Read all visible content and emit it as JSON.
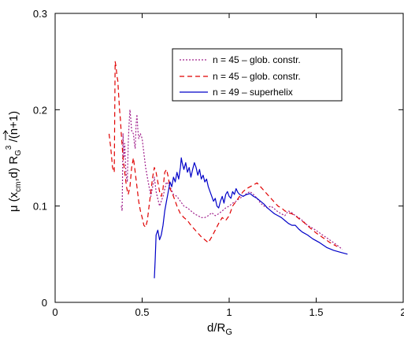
{
  "chart_data": {
    "type": "line",
    "xlabel_main": "d/R",
    "xlabel_sub": "G",
    "ylabel_mu": "μ",
    "ylabel_open": " (",
    "ylabel_x": "x",
    "ylabel_cm": "cm",
    "ylabel_mid": ",d) R",
    "ylabel_g": "G",
    "ylabel_exp": "3",
    "ylabel_tail": " /(n+1)",
    "xlim": [
      0,
      2
    ],
    "ylim": [
      0,
      0.3
    ],
    "x_ticks": [
      {
        "value": 0,
        "label": "0"
      },
      {
        "value": 0.5,
        "label": "0.5"
      },
      {
        "value": 1,
        "label": "1"
      },
      {
        "value": 1.5,
        "label": "1.5"
      },
      {
        "value": 2,
        "label": "2"
      }
    ],
    "y_ticks": [
      {
        "value": 0,
        "label": "0"
      },
      {
        "value": 0.1,
        "label": "0.1"
      },
      {
        "value": 0.2,
        "label": "0.2"
      },
      {
        "value": 0.3,
        "label": "0.3"
      }
    ],
    "grid": false,
    "legend_position": "top-right",
    "series": [
      {
        "name": "n = 45 – glob. constr.",
        "color": "#a0208c",
        "dash": "2,2",
        "points": [
          [
            0.38,
            0.1
          ],
          [
            0.385,
            0.095
          ],
          [
            0.39,
            0.175
          ],
          [
            0.395,
            0.15
          ],
          [
            0.4,
            0.165
          ],
          [
            0.405,
            0.14
          ],
          [
            0.41,
            0.13
          ],
          [
            0.415,
            0.125
          ],
          [
            0.42,
            0.165
          ],
          [
            0.425,
            0.185
          ],
          [
            0.43,
            0.2
          ],
          [
            0.435,
            0.19
          ],
          [
            0.44,
            0.178
          ],
          [
            0.45,
            0.175
          ],
          [
            0.455,
            0.165
          ],
          [
            0.46,
            0.16
          ],
          [
            0.465,
            0.185
          ],
          [
            0.47,
            0.195
          ],
          [
            0.475,
            0.18
          ],
          [
            0.48,
            0.17
          ],
          [
            0.49,
            0.175
          ],
          [
            0.5,
            0.17
          ],
          [
            0.51,
            0.155
          ],
          [
            0.52,
            0.14
          ],
          [
            0.53,
            0.13
          ],
          [
            0.54,
            0.12
          ],
          [
            0.55,
            0.11
          ],
          [
            0.56,
            0.12
          ],
          [
            0.57,
            0.13
          ],
          [
            0.58,
            0.115
          ],
          [
            0.6,
            0.1
          ],
          [
            0.62,
            0.11
          ],
          [
            0.64,
            0.125
          ],
          [
            0.66,
            0.12
          ],
          [
            0.68,
            0.112
          ],
          [
            0.7,
            0.11
          ],
          [
            0.72,
            0.105
          ],
          [
            0.74,
            0.1
          ],
          [
            0.76,
            0.098
          ],
          [
            0.78,
            0.095
          ],
          [
            0.8,
            0.092
          ],
          [
            0.82,
            0.09
          ],
          [
            0.84,
            0.088
          ],
          [
            0.86,
            0.088
          ],
          [
            0.88,
            0.09
          ],
          [
            0.9,
            0.093
          ],
          [
            0.92,
            0.09
          ],
          [
            0.94,
            0.092
          ],
          [
            0.96,
            0.095
          ],
          [
            0.98,
            0.098
          ],
          [
            1.0,
            0.1
          ],
          [
            1.02,
            0.103
          ],
          [
            1.04,
            0.105
          ],
          [
            1.06,
            0.108
          ],
          [
            1.08,
            0.11
          ],
          [
            1.1,
            0.113
          ],
          [
            1.12,
            0.115
          ],
          [
            1.14,
            0.112
          ],
          [
            1.16,
            0.108
          ],
          [
            1.18,
            0.103
          ],
          [
            1.2,
            0.1
          ],
          [
            1.22,
            0.098
          ],
          [
            1.24,
            0.1
          ],
          [
            1.26,
            0.097
          ],
          [
            1.28,
            0.094
          ],
          [
            1.3,
            0.092
          ],
          [
            1.32,
            0.09
          ],
          [
            1.34,
            0.095
          ],
          [
            1.36,
            0.093
          ],
          [
            1.38,
            0.09
          ],
          [
            1.4,
            0.088
          ],
          [
            1.42,
            0.085
          ],
          [
            1.45,
            0.08
          ],
          [
            1.48,
            0.077
          ],
          [
            1.52,
            0.072
          ],
          [
            1.56,
            0.067
          ],
          [
            1.6,
            0.062
          ],
          [
            1.63,
            0.058
          ],
          [
            1.65,
            0.055
          ]
        ]
      },
      {
        "name": "n = 45 – glob. constr.",
        "color": "#e00000",
        "dash": "6,4",
        "points": [
          [
            0.31,
            0.175
          ],
          [
            0.32,
            0.16
          ],
          [
            0.33,
            0.14
          ],
          [
            0.34,
            0.135
          ],
          [
            0.345,
            0.25
          ],
          [
            0.35,
            0.245
          ],
          [
            0.355,
            0.235
          ],
          [
            0.36,
            0.23
          ],
          [
            0.365,
            0.215
          ],
          [
            0.37,
            0.2
          ],
          [
            0.375,
            0.19
          ],
          [
            0.38,
            0.175
          ],
          [
            0.39,
            0.15
          ],
          [
            0.4,
            0.135
          ],
          [
            0.41,
            0.12
          ],
          [
            0.42,
            0.112
          ],
          [
            0.43,
            0.12
          ],
          [
            0.44,
            0.14
          ],
          [
            0.45,
            0.15
          ],
          [
            0.46,
            0.135
          ],
          [
            0.47,
            0.12
          ],
          [
            0.48,
            0.105
          ],
          [
            0.49,
            0.095
          ],
          [
            0.5,
            0.088
          ],
          [
            0.51,
            0.08
          ],
          [
            0.52,
            0.078
          ],
          [
            0.53,
            0.085
          ],
          [
            0.54,
            0.1
          ],
          [
            0.55,
            0.115
          ],
          [
            0.56,
            0.13
          ],
          [
            0.57,
            0.14
          ],
          [
            0.58,
            0.135
          ],
          [
            0.59,
            0.125
          ],
          [
            0.6,
            0.115
          ],
          [
            0.61,
            0.11
          ],
          [
            0.62,
            0.118
          ],
          [
            0.63,
            0.135
          ],
          [
            0.64,
            0.138
          ],
          [
            0.65,
            0.13
          ],
          [
            0.66,
            0.118
          ],
          [
            0.68,
            0.11
          ],
          [
            0.7,
            0.1
          ],
          [
            0.72,
            0.092
          ],
          [
            0.74,
            0.088
          ],
          [
            0.76,
            0.085
          ],
          [
            0.78,
            0.08
          ],
          [
            0.8,
            0.076
          ],
          [
            0.82,
            0.072
          ],
          [
            0.84,
            0.068
          ],
          [
            0.86,
            0.065
          ],
          [
            0.88,
            0.062
          ],
          [
            0.9,
            0.068
          ],
          [
            0.92,
            0.075
          ],
          [
            0.94,
            0.082
          ],
          [
            0.96,
            0.088
          ],
          [
            0.98,
            0.085
          ],
          [
            1.0,
            0.09
          ],
          [
            1.02,
            0.1
          ],
          [
            1.04,
            0.105
          ],
          [
            1.06,
            0.11
          ],
          [
            1.08,
            0.115
          ],
          [
            1.1,
            0.118
          ],
          [
            1.12,
            0.12
          ],
          [
            1.14,
            0.122
          ],
          [
            1.16,
            0.124
          ],
          [
            1.18,
            0.12
          ],
          [
            1.2,
            0.116
          ],
          [
            1.22,
            0.112
          ],
          [
            1.24,
            0.108
          ],
          [
            1.26,
            0.104
          ],
          [
            1.28,
            0.1
          ],
          [
            1.3,
            0.098
          ],
          [
            1.32,
            0.095
          ],
          [
            1.34,
            0.093
          ],
          [
            1.36,
            0.092
          ],
          [
            1.38,
            0.09
          ],
          [
            1.4,
            0.087
          ],
          [
            1.43,
            0.083
          ],
          [
            1.46,
            0.078
          ],
          [
            1.5,
            0.072
          ],
          [
            1.54,
            0.067
          ],
          [
            1.58,
            0.062
          ],
          [
            1.62,
            0.058
          ]
        ]
      },
      {
        "name": "n = 49 – superhelix",
        "color": "#0000c8",
        "dash": "",
        "points": [
          [
            0.57,
            0.025
          ],
          [
            0.575,
            0.045
          ],
          [
            0.58,
            0.07
          ],
          [
            0.59,
            0.075
          ],
          [
            0.6,
            0.065
          ],
          [
            0.61,
            0.07
          ],
          [
            0.62,
            0.08
          ],
          [
            0.63,
            0.095
          ],
          [
            0.64,
            0.105
          ],
          [
            0.65,
            0.115
          ],
          [
            0.66,
            0.125
          ],
          [
            0.67,
            0.12
          ],
          [
            0.68,
            0.13
          ],
          [
            0.69,
            0.125
          ],
          [
            0.7,
            0.135
          ],
          [
            0.71,
            0.128
          ],
          [
            0.72,
            0.14
          ],
          [
            0.725,
            0.15
          ],
          [
            0.73,
            0.145
          ],
          [
            0.74,
            0.138
          ],
          [
            0.75,
            0.145
          ],
          [
            0.76,
            0.135
          ],
          [
            0.77,
            0.14
          ],
          [
            0.78,
            0.13
          ],
          [
            0.79,
            0.138
          ],
          [
            0.8,
            0.145
          ],
          [
            0.81,
            0.14
          ],
          [
            0.82,
            0.132
          ],
          [
            0.83,
            0.138
          ],
          [
            0.84,
            0.128
          ],
          [
            0.85,
            0.132
          ],
          [
            0.86,
            0.125
          ],
          [
            0.87,
            0.128
          ],
          [
            0.88,
            0.12
          ],
          [
            0.89,
            0.115
          ],
          [
            0.9,
            0.11
          ],
          [
            0.91,
            0.105
          ],
          [
            0.92,
            0.108
          ],
          [
            0.93,
            0.1
          ],
          [
            0.94,
            0.098
          ],
          [
            0.95,
            0.105
          ],
          [
            0.96,
            0.11
          ],
          [
            0.97,
            0.103
          ],
          [
            0.98,
            0.112
          ],
          [
            0.99,
            0.115
          ],
          [
            1.0,
            0.11
          ],
          [
            1.01,
            0.108
          ],
          [
            1.02,
            0.115
          ],
          [
            1.03,
            0.112
          ],
          [
            1.04,
            0.118
          ],
          [
            1.05,
            0.114
          ],
          [
            1.06,
            0.112
          ],
          [
            1.08,
            0.11
          ],
          [
            1.1,
            0.112
          ],
          [
            1.12,
            0.113
          ],
          [
            1.14,
            0.11
          ],
          [
            1.16,
            0.108
          ],
          [
            1.18,
            0.105
          ],
          [
            1.2,
            0.102
          ],
          [
            1.22,
            0.098
          ],
          [
            1.24,
            0.095
          ],
          [
            1.26,
            0.092
          ],
          [
            1.28,
            0.09
          ],
          [
            1.3,
            0.088
          ],
          [
            1.32,
            0.085
          ],
          [
            1.34,
            0.082
          ],
          [
            1.36,
            0.08
          ],
          [
            1.38,
            0.08
          ],
          [
            1.4,
            0.076
          ],
          [
            1.42,
            0.073
          ],
          [
            1.45,
            0.07
          ],
          [
            1.48,
            0.066
          ],
          [
            1.52,
            0.062
          ],
          [
            1.56,
            0.057
          ],
          [
            1.6,
            0.054
          ],
          [
            1.64,
            0.052
          ],
          [
            1.68,
            0.05
          ]
        ]
      }
    ]
  }
}
